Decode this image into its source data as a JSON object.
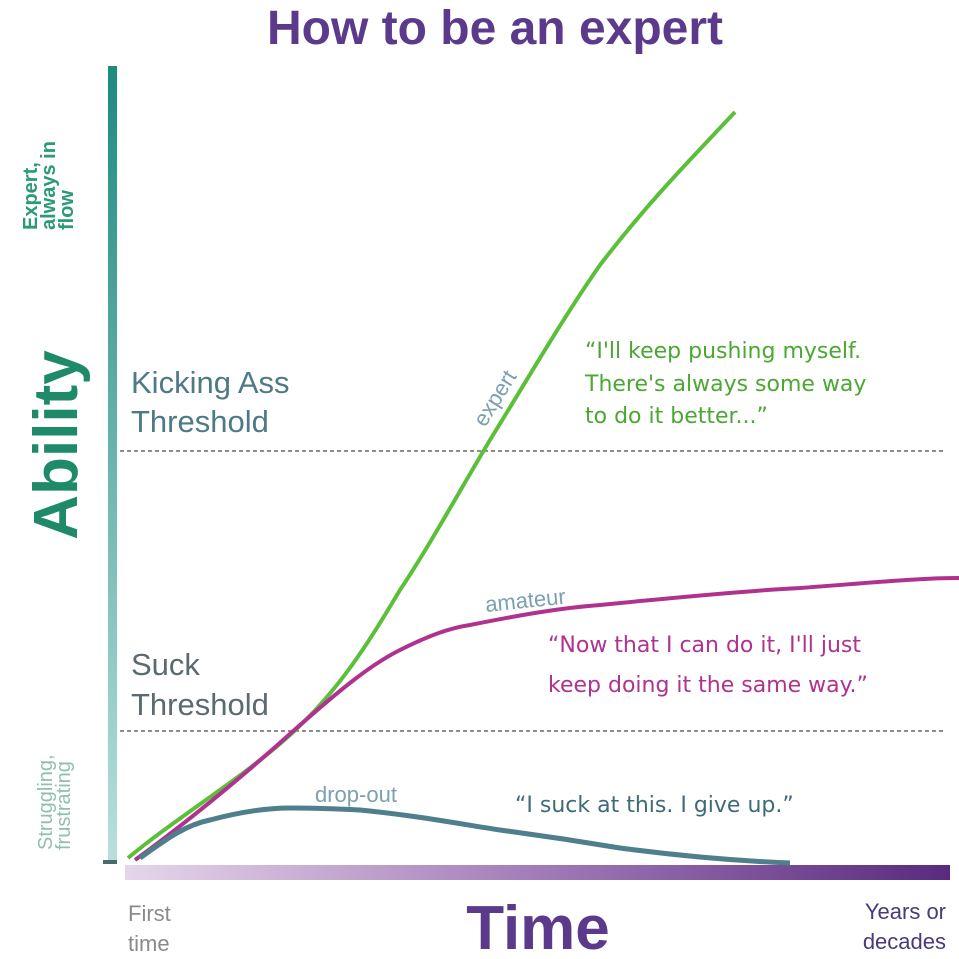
{
  "title": "How to be an expert",
  "y_axis": {
    "label": "Ability",
    "top_label": [
      "Expert,",
      "always in",
      "flow"
    ],
    "bottom_label": [
      "Struggling,",
      "frustrating"
    ]
  },
  "x_axis": {
    "label": "Time",
    "start_label": [
      "First",
      "time"
    ],
    "end_label": [
      "Years or",
      "decades"
    ]
  },
  "thresholds": {
    "upper": [
      "Kicking Ass",
      "Threshold"
    ],
    "lower": [
      "Suck",
      "Threshold"
    ]
  },
  "curves": {
    "expert": {
      "label": "expert",
      "quote": [
        "“I'll keep pushing myself.",
        "There's always some way",
        "to do it better...”"
      ],
      "color": "#5cbf3a"
    },
    "amateur": {
      "label": "amateur",
      "quote": [
        "“Now that I can do it, I'll just",
        "keep doing it the same way.”"
      ],
      "color": "#b0328f"
    },
    "dropout": {
      "label": "drop-out",
      "quote": "“I suck at this. I give up.”",
      "color": "#4f7f8c"
    }
  },
  "colors": {
    "title": "#5b3a8c",
    "ability": "#1f8a6a",
    "axis_teal": "#2a8f86",
    "time": "#5b3a8c"
  }
}
